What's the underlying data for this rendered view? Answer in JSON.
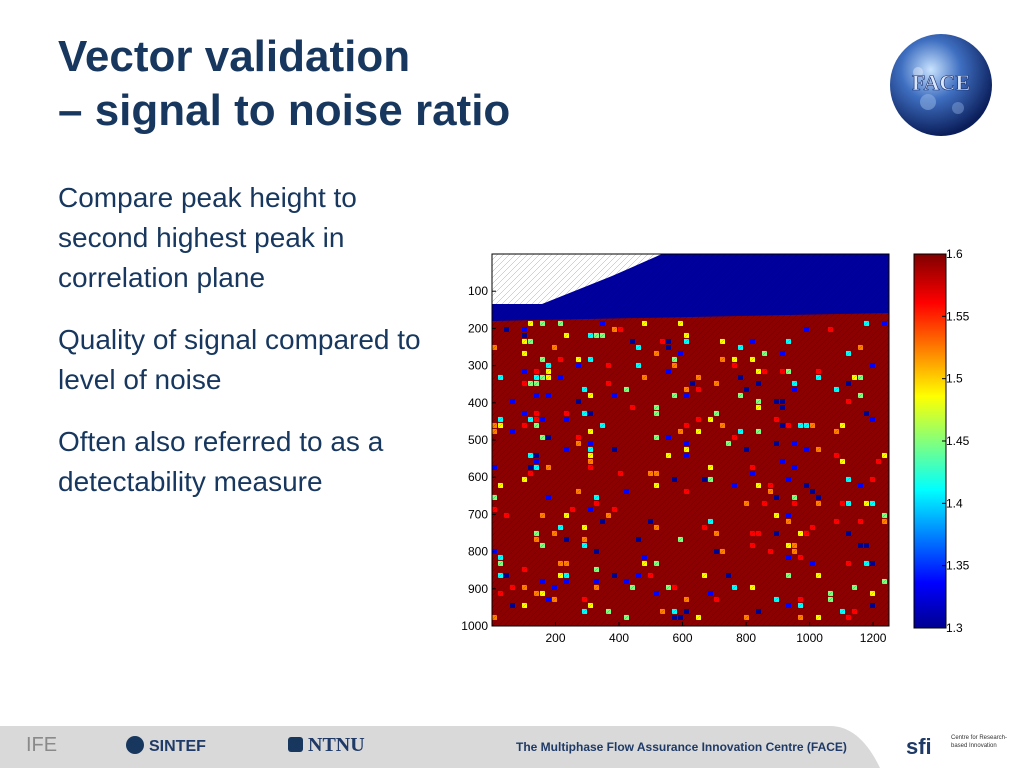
{
  "title": {
    "line1": "Vector validation",
    "line2": "– signal to noise ratio"
  },
  "logo": {
    "text": "FACE",
    "icon": "face-globe-logo"
  },
  "bullets": [
    "Compare peak height to second highest peak in correlation plane",
    "Quality of signal compared to level of noise",
    "Often also referred to as a detectability measure"
  ],
  "chart_data": {
    "type": "heatmap",
    "title": "",
    "xlabel": "",
    "ylabel": "",
    "x_ticks": [
      "200",
      "400",
      "600",
      "800",
      "1000",
      "1200"
    ],
    "y_ticks": [
      "100",
      "200",
      "300",
      "400",
      "500",
      "600",
      "700",
      "800",
      "900",
      "1000"
    ],
    "xlim": [
      0,
      1250
    ],
    "ylim": [
      0,
      1000
    ],
    "colorbar": {
      "ticks": [
        "1.6",
        "1.55",
        "1.5",
        "1.45",
        "1.4",
        "1.35",
        "1.3"
      ],
      "range": [
        1.3,
        1.6
      ],
      "colormap": "jet"
    },
    "regions": [
      {
        "description_value": 1.3,
        "rows": [
          0,
          180
        ]
      },
      {
        "description_value": 1.6,
        "rows": [
          180,
          1000
        ]
      }
    ]
  },
  "footer": {
    "ife": "IFE",
    "sintef": "SINTEF",
    "ntnu": "NTNU",
    "centre": "The Multiphase Flow Assurance Innovation Centre (FACE)",
    "sfi": "sfi",
    "sfi_sub": "Centre for Research-based Innovation"
  },
  "colors": {
    "title": "#17375e",
    "footer_bg": "#d9d9d9",
    "heat_high": "#8b0000",
    "heat_low": "#00009c"
  }
}
